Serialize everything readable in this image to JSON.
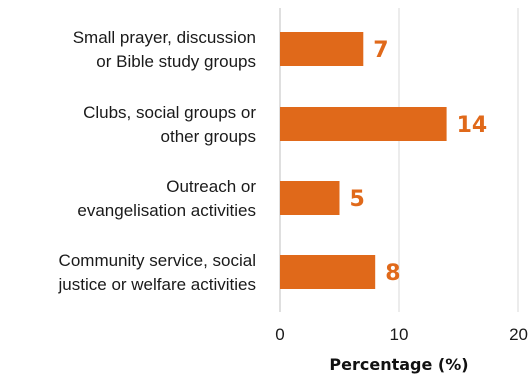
{
  "chart_data": {
    "type": "bar",
    "orientation": "horizontal",
    "categories": [
      [
        "Small prayer, discussion",
        "or Bible study groups"
      ],
      [
        "Clubs, social groups or",
        "other groups"
      ],
      [
        "Outreach or",
        "evangelisation activities"
      ],
      [
        "Community service, social",
        "justice or welfare activities"
      ]
    ],
    "values": [
      7,
      14,
      5,
      8
    ],
    "data_labels": [
      "7",
      "14",
      "5",
      "8"
    ],
    "xlabel": "Percentage (%)",
    "xlim": [
      0,
      20
    ],
    "xticks": [
      "0",
      "10",
      "20"
    ],
    "grid": true,
    "colors": {
      "bar": "#E0691A",
      "label": "#E0691A",
      "grid": "#d9d9d9",
      "axis": "#bfbfbf"
    }
  }
}
